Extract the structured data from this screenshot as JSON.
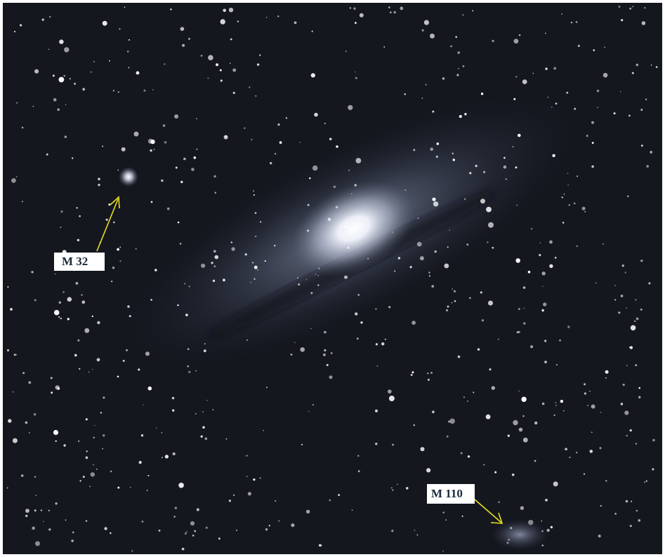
{
  "annotations": [
    {
      "label": "M 32"
    },
    {
      "label": "M 110"
    }
  ]
}
